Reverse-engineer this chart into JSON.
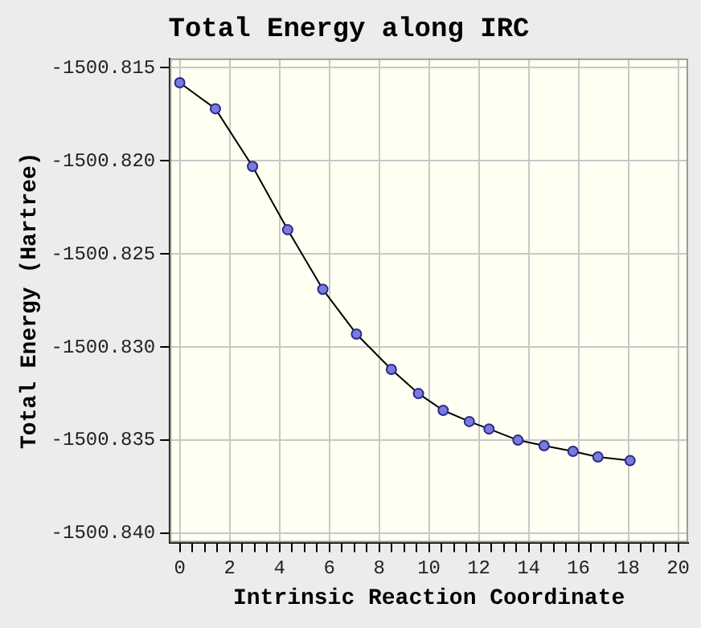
{
  "chart_data": {
    "type": "line",
    "title": "Total Energy along IRC",
    "xlabel": "Intrinsic Reaction Coordinate",
    "ylabel": "Total Energy (Hartree)",
    "x": [
      0,
      1.43,
      2.92,
      4.33,
      5.74,
      7.09,
      8.49,
      9.58,
      10.57,
      11.62,
      12.41,
      13.57,
      14.62,
      15.78,
      16.78,
      18.07
    ],
    "series": [
      {
        "color": "#7b7bdc",
        "values": [
          -1500.8158,
          -1500.8172,
          -1500.8203,
          -1500.8237,
          -1500.8269,
          -1500.8293,
          -1500.8312,
          -1500.8325,
          -1500.8334,
          -1500.834,
          -1500.8344,
          -1500.835,
          -1500.8353,
          -1500.8356,
          -1500.8359,
          -1500.8361
        ]
      }
    ],
    "xlim": [
      -0.4,
      20.4
    ],
    "xticks": [
      0,
      {
        "value": 0.5,
        "label": null
      },
      {
        "value": 1,
        "label": null
      },
      {
        "value": 1.5,
        "label": null
      },
      2,
      {
        "value": 2.5,
        "label": null
      },
      {
        "value": 3,
        "label": null
      },
      {
        "value": 3.5,
        "label": null
      },
      4,
      {
        "value": 4.5,
        "label": null
      },
      {
        "value": 5,
        "label": null
      },
      {
        "value": 5.5,
        "label": null
      },
      6,
      {
        "value": 6.5,
        "label": null
      },
      {
        "value": 7,
        "label": null
      },
      {
        "value": 7.5,
        "label": null
      },
      8,
      {
        "value": 8.5,
        "label": null
      },
      {
        "value": 9,
        "label": null
      },
      {
        "value": 9.5,
        "label": null
      },
      10,
      {
        "value": 10.5,
        "label": null
      },
      {
        "value": 11,
        "label": null
      },
      {
        "value": 11.5,
        "label": null
      },
      12,
      {
        "value": 12.5,
        "label": null
      },
      {
        "value": 13,
        "label": null
      },
      {
        "value": 13.5,
        "label": null
      },
      14,
      {
        "value": 14.5,
        "label": null
      },
      {
        "value": 15,
        "label": null
      },
      {
        "value": 15.5,
        "label": null
      },
      16,
      {
        "value": 16.5,
        "label": null
      },
      {
        "value": 17,
        "label": null
      },
      {
        "value": 17.5,
        "label": null
      },
      18,
      {
        "value": 18.5,
        "label": null
      },
      {
        "value": 19,
        "label": null
      },
      {
        "value": 19.5,
        "label": null
      },
      20
    ],
    "ylim": [
      -1500.8405,
      -1500.8145
    ],
    "yticks": [
      -1500.815,
      {
        "value": -1500.82,
        "label": "-1500.820"
      },
      -1500.825,
      {
        "value": -1500.83,
        "label": "-1500.830"
      },
      -1500.835,
      {
        "value": -1500.84,
        "label": "-1500.840"
      }
    ],
    "grid": true,
    "marker": "circle",
    "line_style": "solid"
  }
}
